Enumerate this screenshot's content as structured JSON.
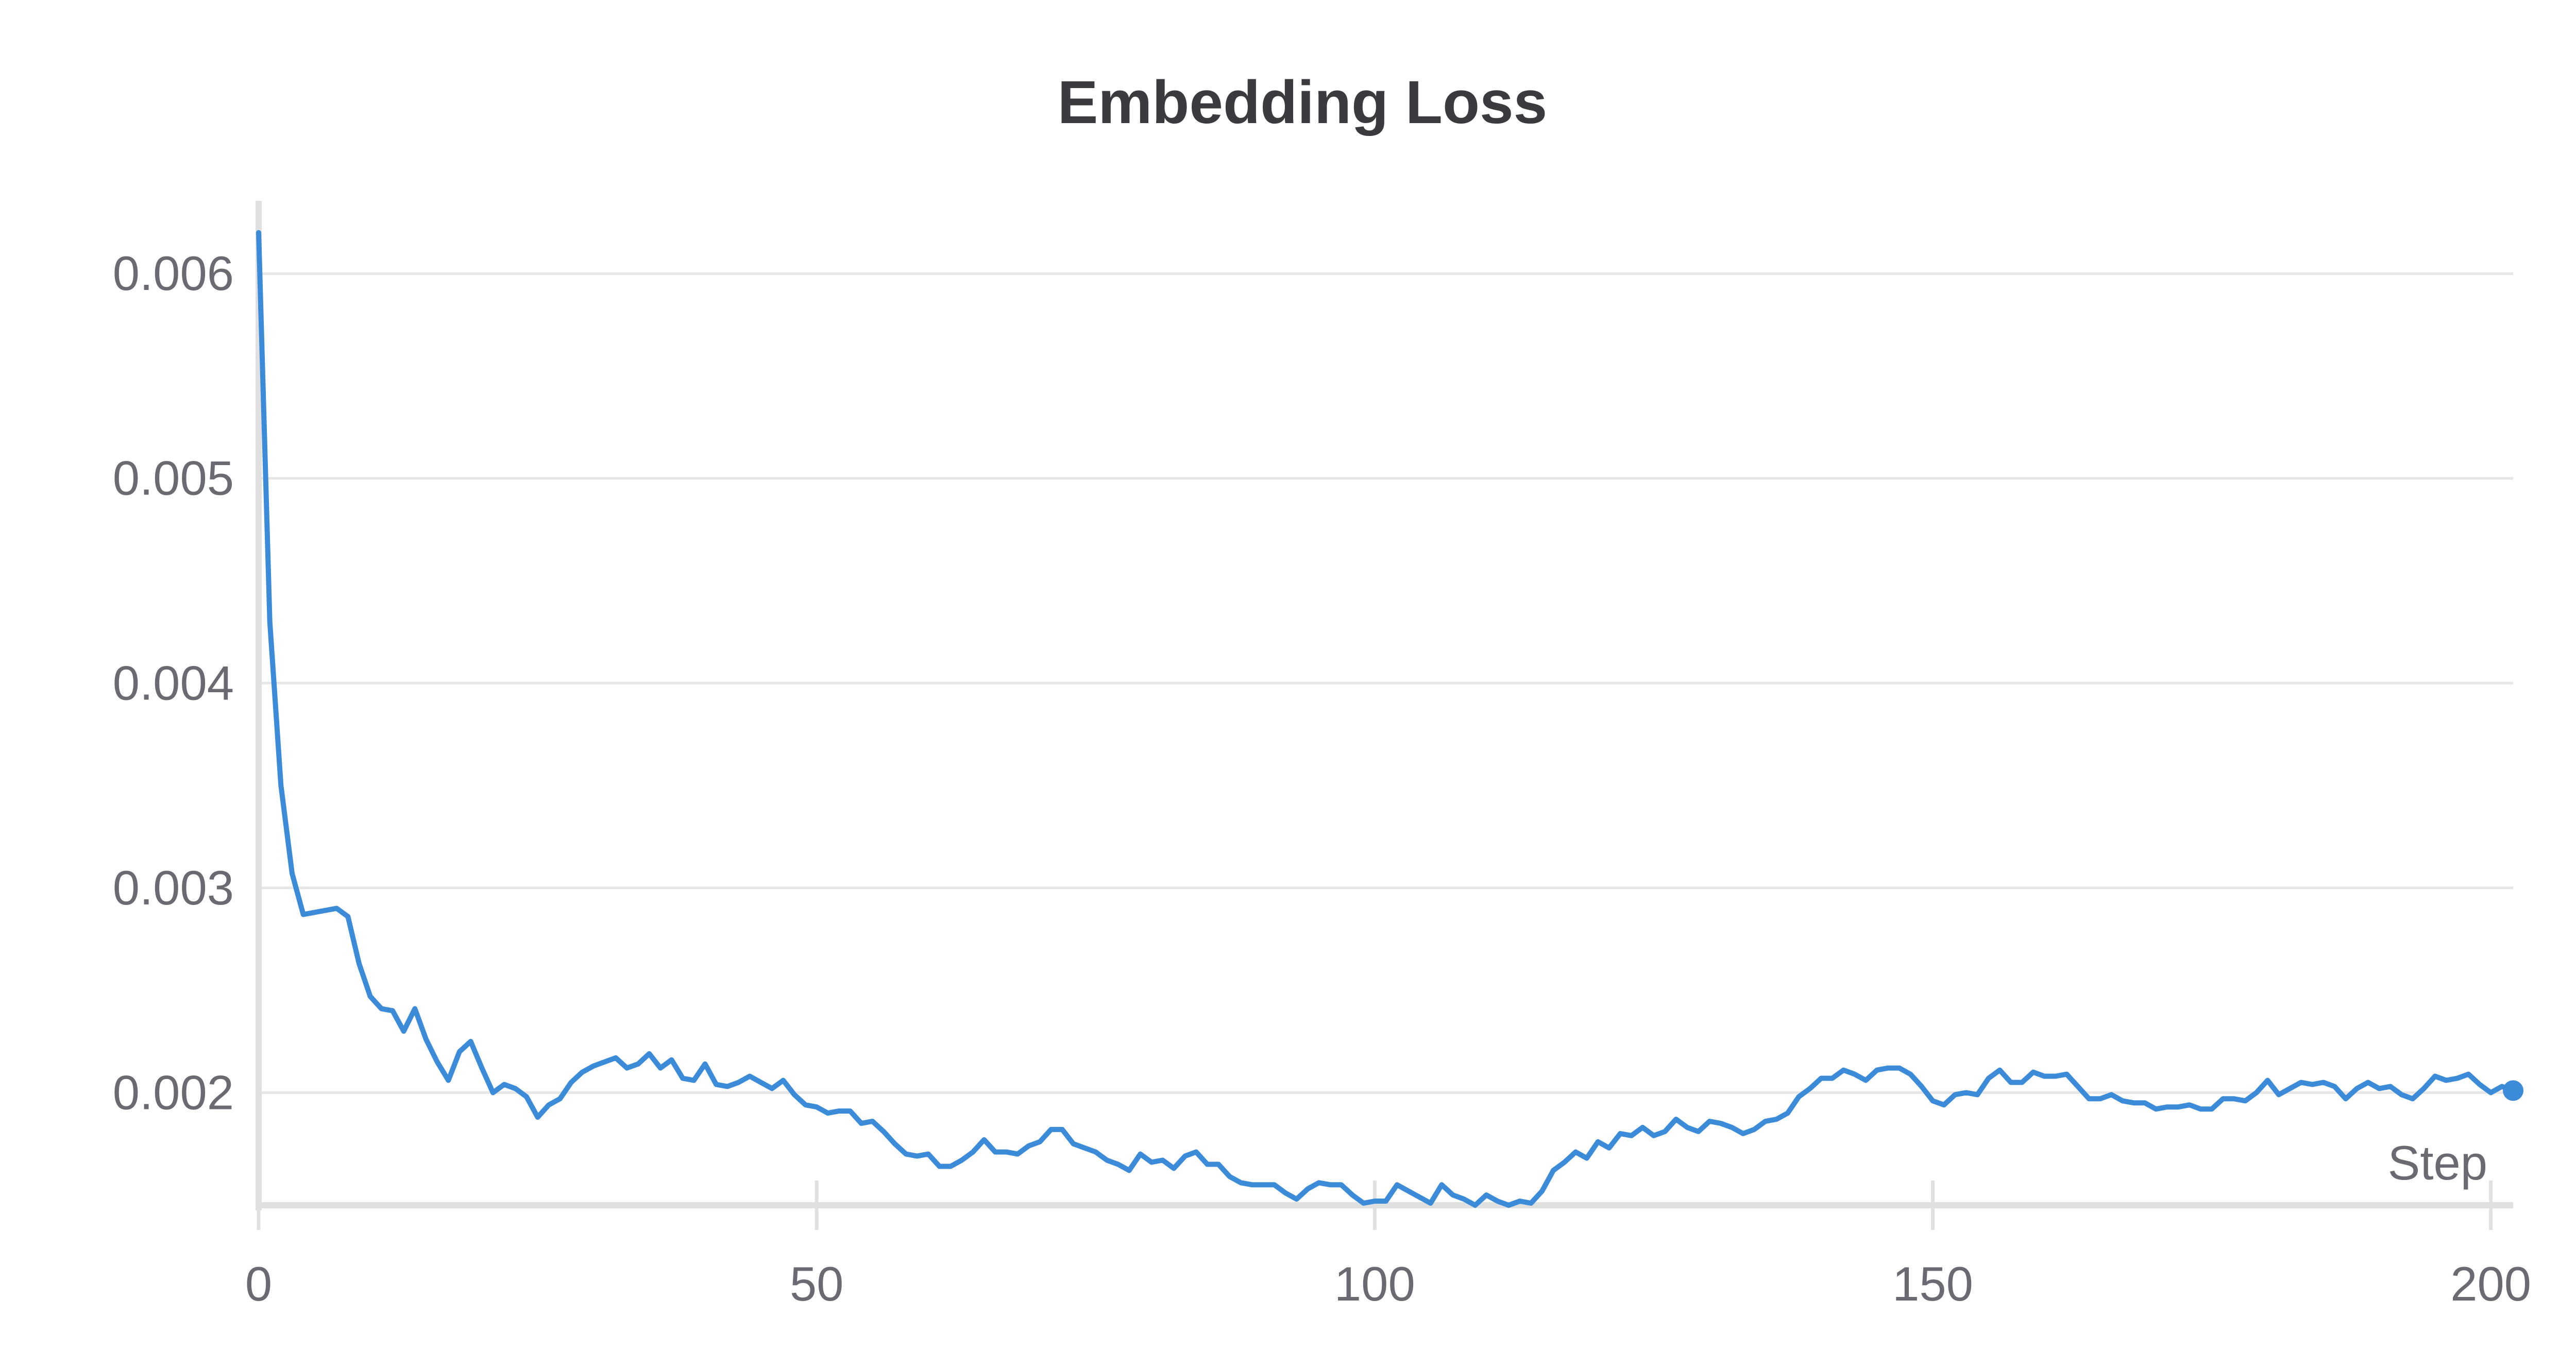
{
  "chart_data": {
    "type": "line",
    "title": "Embedding Loss",
    "xlabel": "Step",
    "ylabel": "",
    "xlim": [
      0,
      202
    ],
    "ylim": [
      0.00145,
      0.00633
    ],
    "x_ticks": [
      0,
      50,
      100,
      150,
      200
    ],
    "y_ticks": [
      0.002,
      0.003,
      0.004,
      0.005,
      0.006
    ],
    "x_tick_labels": [
      "0",
      "50",
      "100",
      "150",
      "200"
    ],
    "y_tick_labels": [
      "0.002",
      "0.003",
      "0.004",
      "0.005",
      "0.006"
    ],
    "grid": true,
    "colors": {
      "line": "#3b8bd9",
      "grid": "#e6e6e6",
      "axis": "#e0e0e0",
      "text": "#6a6b72",
      "title": "#3a3b3f"
    },
    "series": [
      {
        "color": "#3b8bd9",
        "points": [
          [
            0,
            0.0062
          ],
          [
            1,
            0.0043
          ],
          [
            2,
            0.0035
          ],
          [
            3,
            0.00307
          ],
          [
            4,
            0.00287
          ],
          [
            5,
            0.00288
          ],
          [
            6,
            0.00289
          ],
          [
            7,
            0.0029
          ],
          [
            8,
            0.00286
          ],
          [
            9,
            0.00263
          ],
          [
            10,
            0.00247
          ],
          [
            11,
            0.00241
          ],
          [
            12,
            0.0024
          ],
          [
            13,
            0.0023
          ],
          [
            14,
            0.00241
          ],
          [
            15,
            0.00226
          ],
          [
            16,
            0.00215
          ],
          [
            17,
            0.00206
          ],
          [
            18,
            0.0022
          ],
          [
            19,
            0.00225
          ],
          [
            20,
            0.00212
          ],
          [
            21,
            0.002
          ],
          [
            22,
            0.00204
          ],
          [
            23,
            0.00202
          ],
          [
            24,
            0.00198
          ],
          [
            25,
            0.00188
          ],
          [
            26,
            0.00194
          ],
          [
            27,
            0.00197
          ],
          [
            28,
            0.00205
          ],
          [
            29,
            0.0021
          ],
          [
            30,
            0.00213
          ],
          [
            31,
            0.00215
          ],
          [
            32,
            0.00217
          ],
          [
            33,
            0.00212
          ],
          [
            34,
            0.00214
          ],
          [
            35,
            0.00219
          ],
          [
            36,
            0.00212
          ],
          [
            37,
            0.00216
          ],
          [
            38,
            0.00207
          ],
          [
            39,
            0.00206
          ],
          [
            40,
            0.00214
          ],
          [
            41,
            0.00204
          ],
          [
            42,
            0.00203
          ],
          [
            43,
            0.00205
          ],
          [
            44,
            0.00208
          ],
          [
            45,
            0.00205
          ],
          [
            46,
            0.00202
          ],
          [
            47,
            0.00206
          ],
          [
            48,
            0.00199
          ],
          [
            49,
            0.00194
          ],
          [
            50,
            0.00193
          ],
          [
            51,
            0.0019
          ],
          [
            52,
            0.00191
          ],
          [
            53,
            0.00191
          ],
          [
            54,
            0.00185
          ],
          [
            55,
            0.00186
          ],
          [
            56,
            0.00181
          ],
          [
            57,
            0.00175
          ],
          [
            58,
            0.0017
          ],
          [
            59,
            0.00169
          ],
          [
            60,
            0.0017
          ],
          [
            61,
            0.00164
          ],
          [
            62,
            0.00164
          ],
          [
            63,
            0.00167
          ],
          [
            64,
            0.00171
          ],
          [
            65,
            0.00177
          ],
          [
            66,
            0.00171
          ],
          [
            67,
            0.00171
          ],
          [
            68,
            0.0017
          ],
          [
            69,
            0.00174
          ],
          [
            70,
            0.00176
          ],
          [
            71,
            0.00182
          ],
          [
            72,
            0.00182
          ],
          [
            73,
            0.00175
          ],
          [
            74,
            0.00173
          ],
          [
            75,
            0.00171
          ],
          [
            76,
            0.00167
          ],
          [
            77,
            0.00165
          ],
          [
            78,
            0.00162
          ],
          [
            79,
            0.0017
          ],
          [
            80,
            0.00166
          ],
          [
            81,
            0.00167
          ],
          [
            82,
            0.00163
          ],
          [
            83,
            0.00169
          ],
          [
            84,
            0.00171
          ],
          [
            85,
            0.00165
          ],
          [
            86,
            0.00165
          ],
          [
            87,
            0.00159
          ],
          [
            88,
            0.00156
          ],
          [
            89,
            0.00155
          ],
          [
            90,
            0.00155
          ],
          [
            91,
            0.00155
          ],
          [
            92,
            0.00151
          ],
          [
            93,
            0.00148
          ],
          [
            94,
            0.00153
          ],
          [
            95,
            0.00156
          ],
          [
            96,
            0.00155
          ],
          [
            97,
            0.00155
          ],
          [
            98,
            0.0015
          ],
          [
            99,
            0.00146
          ],
          [
            100,
            0.00147
          ],
          [
            101,
            0.00147
          ],
          [
            102,
            0.00155
          ],
          [
            103,
            0.00152
          ],
          [
            104,
            0.00149
          ],
          [
            105,
            0.00146
          ],
          [
            106,
            0.00155
          ],
          [
            107,
            0.0015
          ],
          [
            108,
            0.00148
          ],
          [
            109,
            0.00145
          ],
          [
            110,
            0.0015
          ],
          [
            111,
            0.00147
          ],
          [
            112,
            0.00145
          ],
          [
            113,
            0.00147
          ],
          [
            114,
            0.00146
          ],
          [
            115,
            0.00152
          ],
          [
            116,
            0.00162
          ],
          [
            117,
            0.00166
          ],
          [
            118,
            0.00171
          ],
          [
            119,
            0.00168
          ],
          [
            120,
            0.00176
          ],
          [
            121,
            0.00173
          ],
          [
            122,
            0.0018
          ],
          [
            123,
            0.00179
          ],
          [
            124,
            0.00183
          ],
          [
            125,
            0.00179
          ],
          [
            126,
            0.00181
          ],
          [
            127,
            0.00187
          ],
          [
            128,
            0.00183
          ],
          [
            129,
            0.00181
          ],
          [
            130,
            0.00186
          ],
          [
            131,
            0.00185
          ],
          [
            132,
            0.00183
          ],
          [
            133,
            0.0018
          ],
          [
            134,
            0.00182
          ],
          [
            135,
            0.00186
          ],
          [
            136,
            0.00187
          ],
          [
            137,
            0.0019
          ],
          [
            138,
            0.00198
          ],
          [
            139,
            0.00202
          ],
          [
            140,
            0.00207
          ],
          [
            141,
            0.00207
          ],
          [
            142,
            0.00211
          ],
          [
            143,
            0.00209
          ],
          [
            144,
            0.00206
          ],
          [
            145,
            0.00211
          ],
          [
            146,
            0.00212
          ],
          [
            147,
            0.00212
          ],
          [
            148,
            0.00209
          ],
          [
            149,
            0.00203
          ],
          [
            150,
            0.00196
          ],
          [
            151,
            0.00194
          ],
          [
            152,
            0.00199
          ],
          [
            153,
            0.002
          ],
          [
            154,
            0.00199
          ],
          [
            155,
            0.00207
          ],
          [
            156,
            0.00211
          ],
          [
            157,
            0.00205
          ],
          [
            158,
            0.00205
          ],
          [
            159,
            0.0021
          ],
          [
            160,
            0.00208
          ],
          [
            161,
            0.00208
          ],
          [
            162,
            0.00209
          ],
          [
            163,
            0.00203
          ],
          [
            164,
            0.00197
          ],
          [
            165,
            0.00197
          ],
          [
            166,
            0.00199
          ],
          [
            167,
            0.00196
          ],
          [
            168,
            0.00195
          ],
          [
            169,
            0.00195
          ],
          [
            170,
            0.00192
          ],
          [
            171,
            0.00193
          ],
          [
            172,
            0.00193
          ],
          [
            173,
            0.00194
          ],
          [
            174,
            0.00192
          ],
          [
            175,
            0.00192
          ],
          [
            176,
            0.00197
          ],
          [
            177,
            0.00197
          ],
          [
            178,
            0.00196
          ],
          [
            179,
            0.002
          ],
          [
            180,
            0.00206
          ],
          [
            181,
            0.00199
          ],
          [
            182,
            0.00202
          ],
          [
            183,
            0.00205
          ],
          [
            184,
            0.00204
          ],
          [
            185,
            0.00205
          ],
          [
            186,
            0.00203
          ],
          [
            187,
            0.00197
          ],
          [
            188,
            0.00202
          ],
          [
            189,
            0.00205
          ],
          [
            190,
            0.00202
          ],
          [
            191,
            0.00203
          ],
          [
            192,
            0.00199
          ],
          [
            193,
            0.00197
          ],
          [
            194,
            0.00202
          ],
          [
            195,
            0.00208
          ],
          [
            196,
            0.00206
          ],
          [
            197,
            0.00207
          ],
          [
            198,
            0.00209
          ],
          [
            199,
            0.00204
          ],
          [
            200,
            0.002
          ],
          [
            201,
            0.00203
          ],
          [
            202,
            0.00201
          ]
        ]
      }
    ]
  }
}
